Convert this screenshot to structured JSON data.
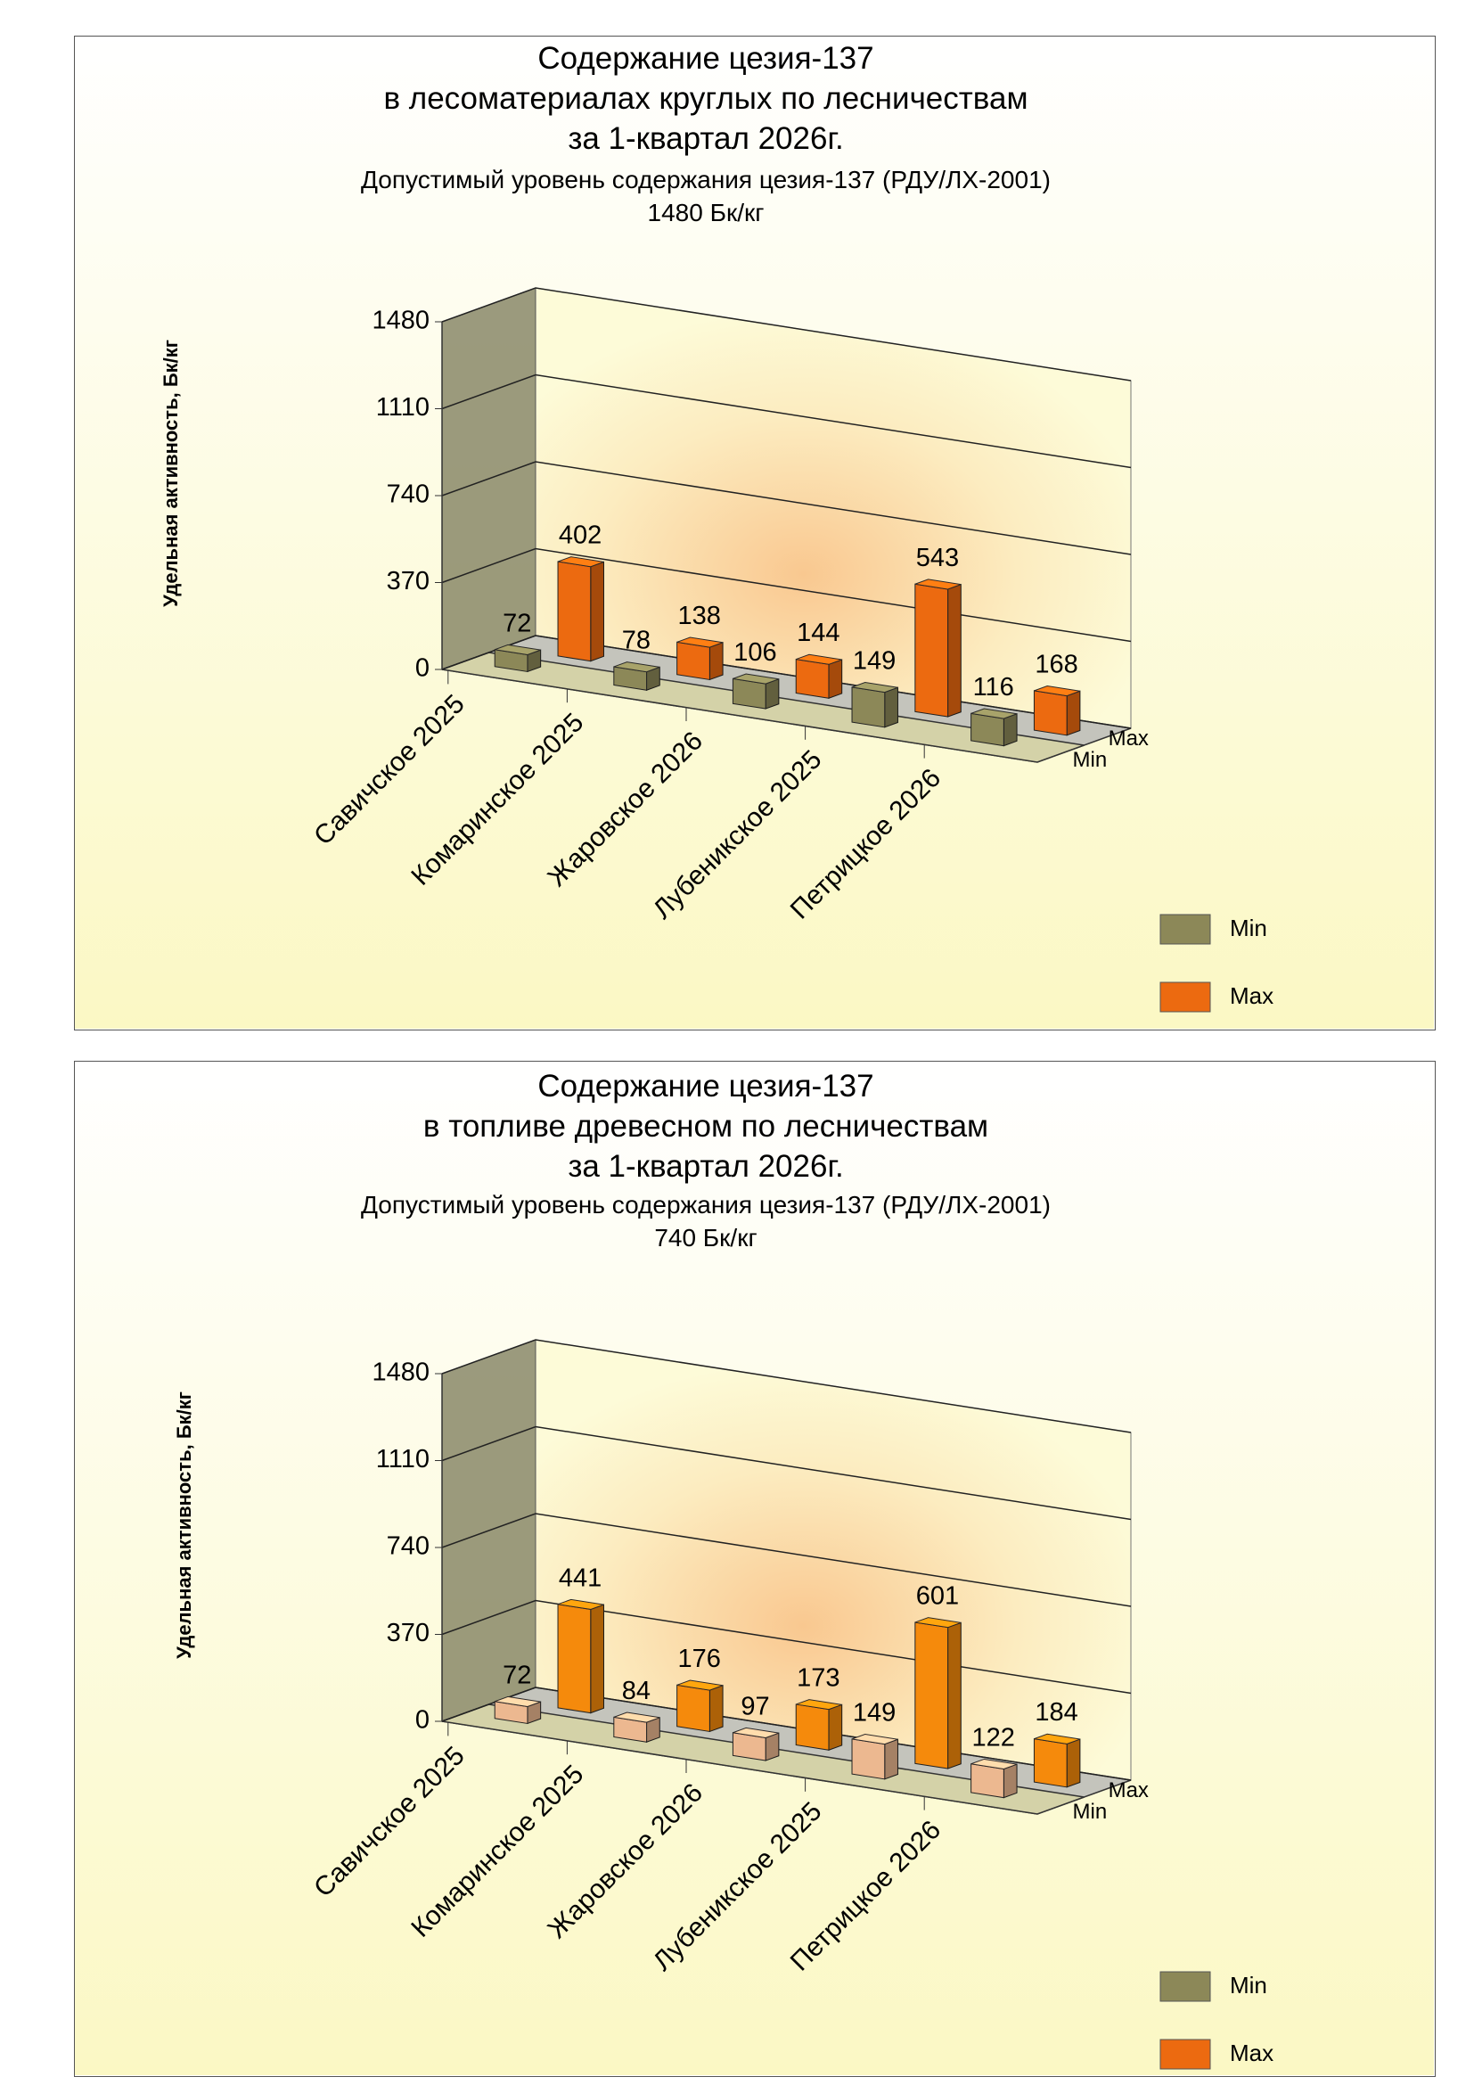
{
  "chart_data": [
    {
      "type": "bar",
      "title": [
        "Содержание цезия-137",
        "в лесоматериалах круглых по лесничествам",
        "за  1-квартал 2026г."
      ],
      "subtitle": [
        "Допустимый уровень содержания цезия-137 (РДУ/ЛХ-2001)",
        "1480 Бк/кг"
      ],
      "y_label": "Удельная активность, Бк/кг",
      "categories": [
        "Савичское 2025",
        "Комаринское 2025",
        "Жаровское 2026",
        "Лубеникское 2025",
        "Петрицкое 2026"
      ],
      "series": [
        {
          "name": "Min",
          "color": "#8c8858",
          "values": [
            72,
            78,
            106,
            149,
            116
          ]
        },
        {
          "name": "Max",
          "color": "#ec6a10",
          "values": [
            402,
            138,
            144,
            543,
            168
          ]
        }
      ],
      "ylim": [
        0,
        1480
      ],
      "yticks": [
        0,
        370,
        740,
        1110,
        1480
      ],
      "grid": true,
      "legend": "bottom-right"
    },
    {
      "type": "bar",
      "title": [
        "Содержание цезия-137",
        "в топливе древесном по лесничествам",
        "за  1-квартал 2026г."
      ],
      "subtitle": [
        "Допустимый уровень содержания цезия-137 (РДУ/ЛХ-2001)",
        "740 Бк/кг"
      ],
      "y_label": "Удельная активность, Бк/кг",
      "categories": [
        "Савичское 2025",
        "Комаринское 2025",
        "Жаровское 2026",
        "Лубеникское 2025",
        "Петрицкое 2026"
      ],
      "series": [
        {
          "name": "Min",
          "color": "#ecb890",
          "legend_color": "#8c8858",
          "values": [
            72,
            84,
            97,
            149,
            122
          ]
        },
        {
          "name": "Max",
          "color": "#f58a0c",
          "legend_color": "#ec6a10",
          "values": [
            441,
            176,
            173,
            601,
            184
          ]
        }
      ],
      "ylim": [
        0,
        1480
      ],
      "yticks": [
        0,
        370,
        740,
        1110,
        1480
      ],
      "grid": true,
      "legend": "bottom-right"
    }
  ]
}
